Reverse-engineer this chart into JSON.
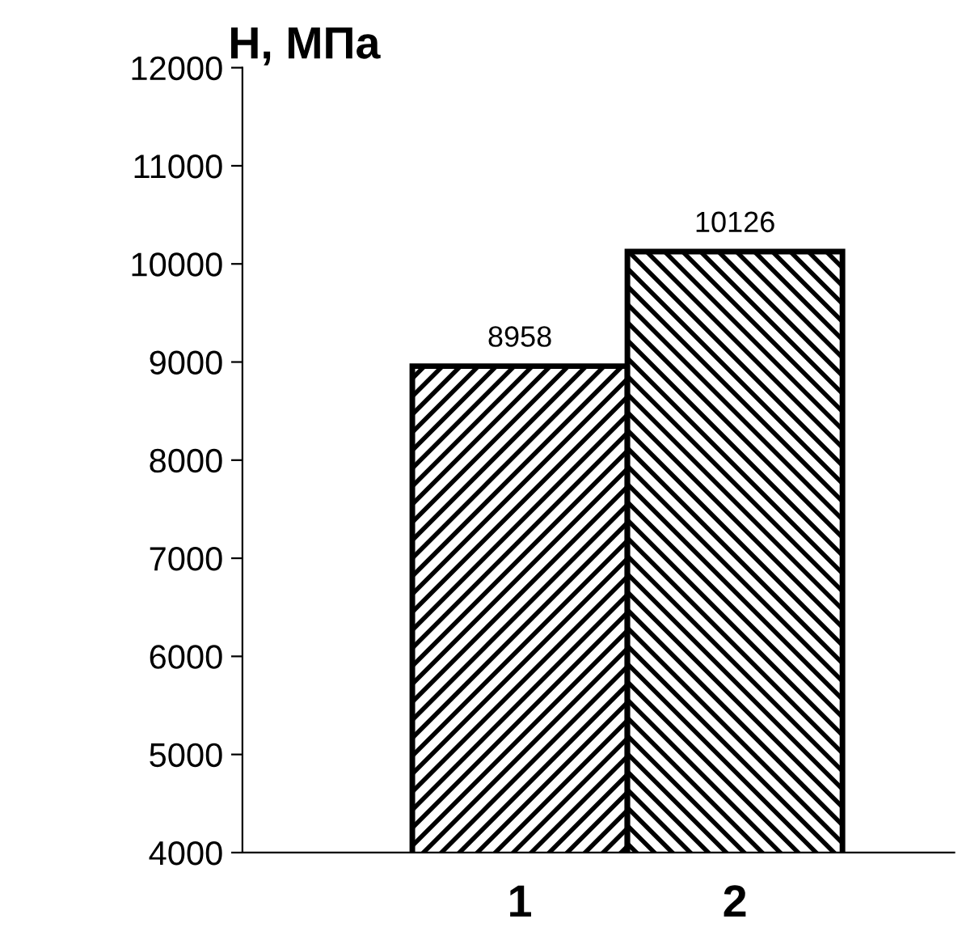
{
  "chart_data": {
    "type": "bar",
    "ylabel": "H, МПа",
    "categories": [
      "1",
      "2"
    ],
    "values": [
      8958,
      10126
    ],
    "colors": [
      "#000000",
      "#000000"
    ],
    "ylim": [
      4000,
      12000
    ],
    "yticks": [
      4000,
      5000,
      6000,
      7000,
      8000,
      9000,
      10000,
      11000,
      12000
    ],
    "data_labels": true,
    "grid": false,
    "legend": false
  }
}
